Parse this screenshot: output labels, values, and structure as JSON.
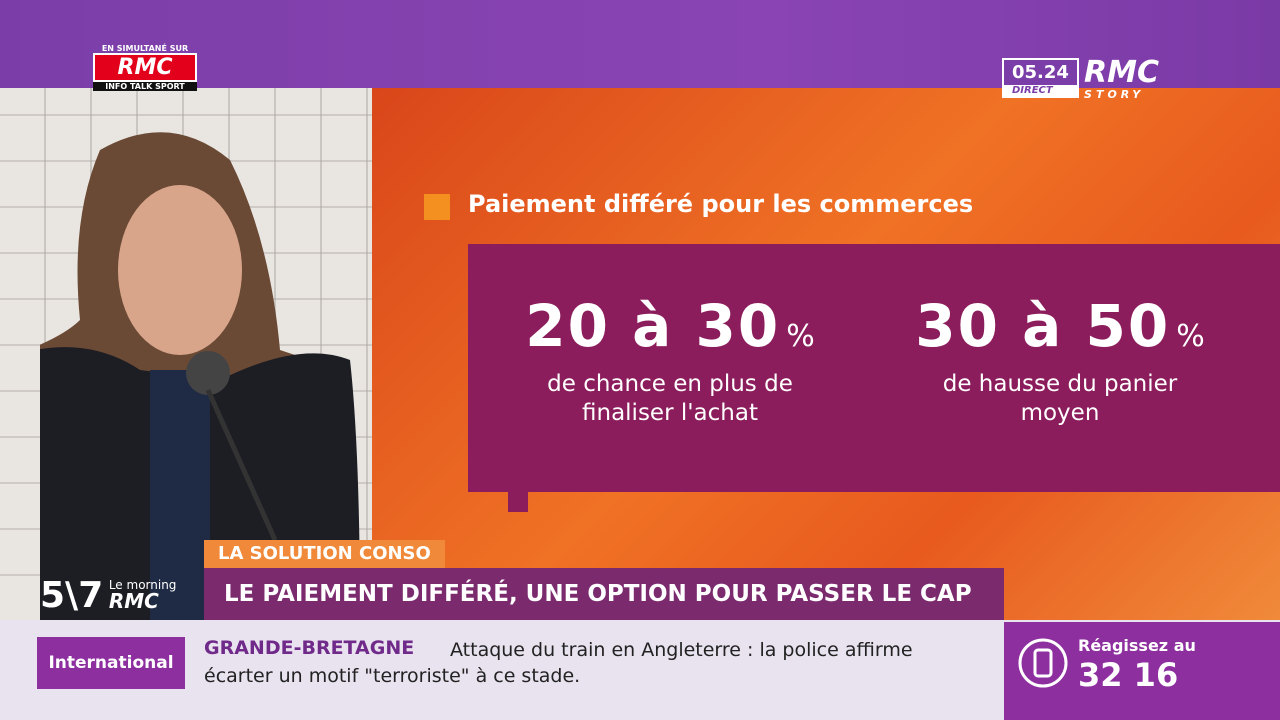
{
  "top_left_logo": {
    "caption": "EN SIMULTANÉ SUR",
    "brand": "RMC",
    "subtitle": "INFO TALK SPORT"
  },
  "clock": {
    "time": "05.24",
    "label": "DIRECT",
    "brand": "RMC",
    "channel": "STORY"
  },
  "graphic": {
    "heading": "Paiement différé pour les commerces",
    "stats": [
      {
        "value": "20 à 30",
        "unit": "%",
        "description": [
          "de chance en plus de",
          "finaliser l'achat"
        ]
      },
      {
        "value": "30 à 50",
        "unit": "%",
        "description": [
          "de hausse du panier",
          "moyen"
        ]
      }
    ]
  },
  "show_logo": {
    "number": "5\\7",
    "tagline": "Le morning",
    "brand": "RMC"
  },
  "banner": {
    "segment": "LA SOLUTION CONSO",
    "headline": "LE PAIEMENT DIFFÉRÉ, UNE OPTION POUR PASSER LE CAP"
  },
  "ticker": {
    "category": "International",
    "country": "GRANDE-BRETAGNE",
    "text": "Attaque du train en Angleterre : la police affirme écarter un motif \"terroriste\" à ce stade."
  },
  "reaction": {
    "prompt": "Réagissez au",
    "number": "32 16"
  }
}
